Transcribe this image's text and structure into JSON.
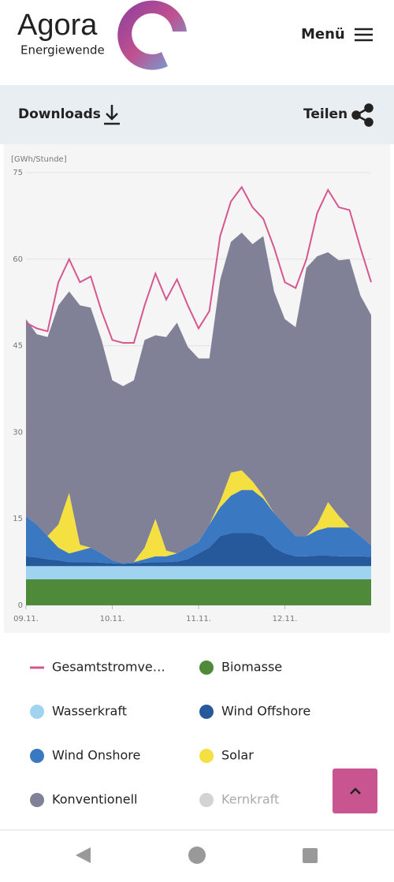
{
  "header": {
    "logo": "Agora",
    "logo_sub": "Energiewende",
    "menu": "Menü"
  },
  "toolbar": {
    "downloads": "Downloads",
    "share": "Teilen"
  },
  "chart_data": {
    "type": "stacked_area",
    "y_label": "[GWh/Stunde]",
    "x": [
      0,
      3,
      6,
      9,
      12,
      15,
      18,
      21,
      24,
      27,
      30,
      33,
      36,
      39,
      42,
      45,
      48,
      51,
      54,
      57,
      60,
      63,
      66,
      69,
      72,
      75,
      78,
      81,
      84,
      87,
      90,
      93,
      96
    ],
    "xlim": [
      0,
      96
    ],
    "xticks": [
      {
        "value": 0,
        "label": "09.11."
      },
      {
        "value": 24,
        "label": "10.11."
      },
      {
        "value": 48,
        "label": "11.11."
      },
      {
        "value": 72,
        "label": "12.11."
      }
    ],
    "ylim": [
      0,
      75
    ],
    "yticks": [
      0,
      15,
      30,
      45,
      60,
      75
    ],
    "grid": true,
    "series": [
      {
        "name": "Gesamtstromve…",
        "color": "#d6578f",
        "kind": "line",
        "values": [
          49,
          48,
          47.5,
          56,
          60,
          56,
          57,
          51,
          46,
          45.5,
          45.5,
          52,
          57.5,
          53,
          56.5,
          52,
          48,
          51,
          64,
          70,
          72.5,
          69,
          67,
          62,
          56,
          55,
          60,
          68,
          72,
          69,
          68.5,
          62,
          56
        ]
      },
      {
        "name": "Biomasse",
        "color": "#4e8a3a",
        "kind": "area",
        "values": [
          4.5,
          4.5,
          4.5,
          4.5,
          4.5,
          4.5,
          4.5,
          4.5,
          4.5,
          4.5,
          4.5,
          4.5,
          4.5,
          4.5,
          4.5,
          4.5,
          4.5,
          4.5,
          4.5,
          4.5,
          4.5,
          4.5,
          4.5,
          4.5,
          4.5,
          4.5,
          4.5,
          4.5,
          4.5,
          4.5,
          4.5,
          4.5,
          4.5
        ]
      },
      {
        "name": "Wasserkraft",
        "color": "#9fd3f0",
        "kind": "area",
        "values": [
          2.3,
          2.3,
          2.3,
          2.3,
          2.3,
          2.3,
          2.3,
          2.3,
          2.3,
          2.3,
          2.3,
          2.3,
          2.3,
          2.3,
          2.3,
          2.3,
          2.3,
          2.3,
          2.3,
          2.3,
          2.3,
          2.3,
          2.3,
          2.3,
          2.3,
          2.3,
          2.3,
          2.3,
          2.3,
          2.3,
          2.3,
          2.3,
          2.3
        ]
      },
      {
        "name": "Wind Offshore",
        "color": "#26589c",
        "kind": "area",
        "values": [
          1.7,
          1.5,
          1.2,
          1.0,
          0.7,
          0.7,
          0.7,
          0.6,
          0.5,
          0.4,
          0.5,
          0.6,
          0.7,
          0.7,
          0.8,
          1.2,
          2.2,
          3.2,
          5.2,
          5.7,
          5.7,
          5.7,
          5.2,
          3.2,
          2.2,
          1.7,
          1.7,
          1.8,
          1.8,
          1.7,
          1.7,
          1.7,
          1.6
        ]
      },
      {
        "name": "Wind Onshore",
        "color": "#3a78c2",
        "kind": "area",
        "values": [
          6.9,
          5.7,
          4.0,
          2.2,
          1.5,
          2.0,
          2.5,
          1.6,
          0.5,
          0.1,
          0.2,
          0.6,
          1.0,
          1.0,
          1.4,
          2.0,
          2.0,
          4.0,
          5.0,
          6.5,
          7.5,
          7.5,
          6.5,
          6.0,
          5.0,
          3.5,
          3.5,
          4.4,
          4.9,
          5.0,
          5.0,
          3.5,
          2.0
        ]
      },
      {
        "name": "Solar",
        "color": "#f5e042",
        "kind": "area",
        "values": [
          0,
          0,
          0,
          4,
          10.5,
          1,
          0,
          0,
          0,
          0,
          0,
          2,
          6.5,
          1,
          0,
          0,
          0,
          0,
          1,
          4,
          3.4,
          1.5,
          0.5,
          0,
          0,
          0,
          0,
          1,
          4.4,
          2,
          0,
          0,
          0
        ]
      },
      {
        "name": "Konventionell",
        "color": "#808096",
        "kind": "area",
        "values": [
          34.2,
          33,
          34.5,
          38,
          34.9,
          41.5,
          41.6,
          37,
          31.2,
          30.7,
          31.5,
          36,
          31.8,
          37,
          40,
          34.8,
          31.8,
          28.8,
          38.4,
          40,
          41.2,
          41.1,
          45,
          38.4,
          35.6,
          36.2,
          46.5,
          46.5,
          43.3,
          44.3,
          46.5,
          41.7,
          39.9
        ]
      },
      {
        "name": "Kernkraft",
        "color": "#d3d3d3",
        "kind": "area",
        "visible": false
      }
    ]
  }
}
